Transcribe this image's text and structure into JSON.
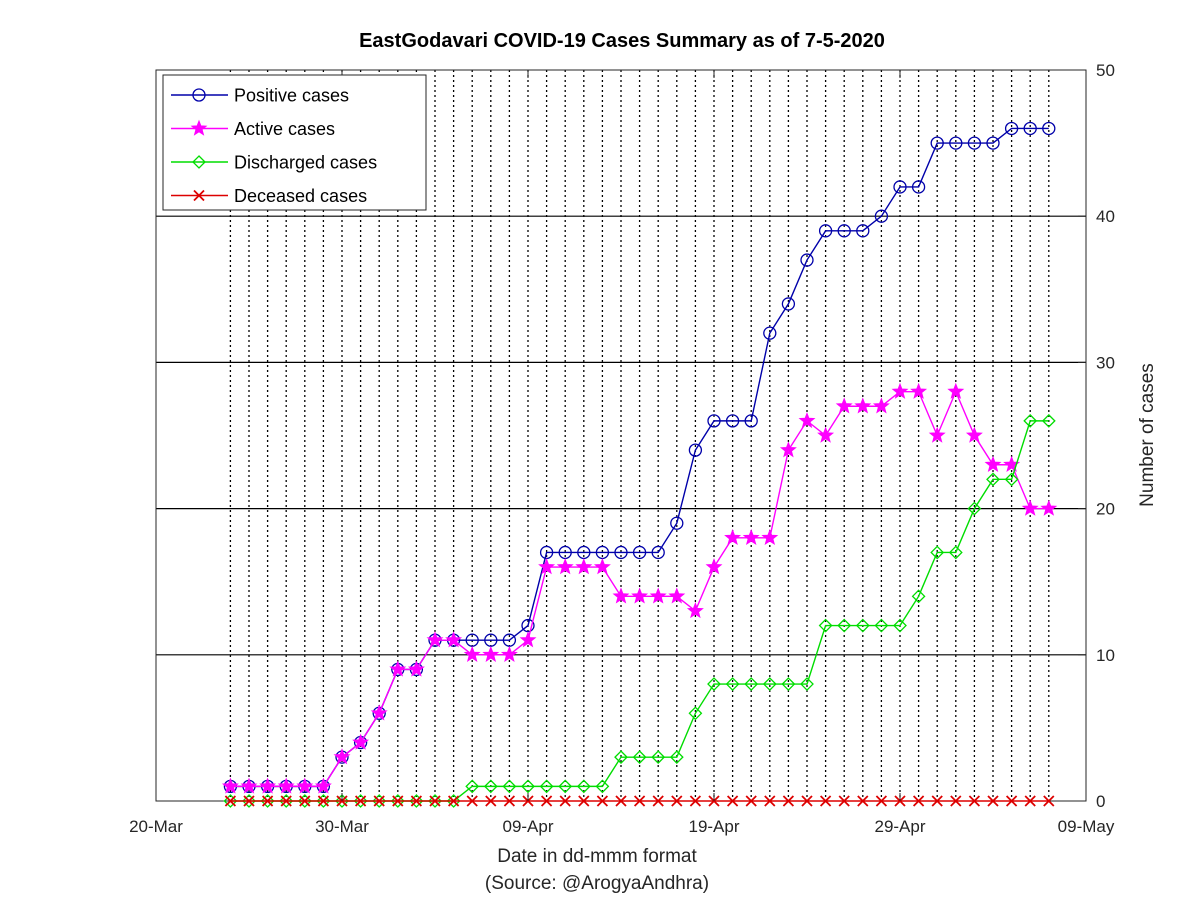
{
  "chart_data": {
    "type": "line",
    "title": "EastGodavari COVID-19 Cases Summary as of 7-5-2020",
    "xlabel": "Date in dd-mmm format",
    "xlabel2": "(Source: @ArogyaAndhra)",
    "ylabel": "Number of cases",
    "x_tick_labels": [
      "20-Mar",
      "30-Mar",
      "09-Apr",
      "19-Apr",
      "29-Apr",
      "09-May"
    ],
    "y_tick_labels": [
      "0",
      "10",
      "20",
      "30",
      "40",
      "50"
    ],
    "x_range": [
      "20-Mar",
      "09-May"
    ],
    "ylim": [
      0,
      50
    ],
    "grid": "on",
    "legend_position": "top-left",
    "dates": [
      "24-Mar",
      "25-Mar",
      "26-Mar",
      "27-Mar",
      "28-Mar",
      "29-Mar",
      "30-Mar",
      "31-Mar",
      "01-Apr",
      "02-Apr",
      "03-Apr",
      "04-Apr",
      "05-Apr",
      "06-Apr",
      "07-Apr",
      "08-Apr",
      "09-Apr",
      "10-Apr",
      "11-Apr",
      "12-Apr",
      "13-Apr",
      "14-Apr",
      "15-Apr",
      "16-Apr",
      "17-Apr",
      "18-Apr",
      "19-Apr",
      "20-Apr",
      "21-Apr",
      "22-Apr",
      "23-Apr",
      "24-Apr",
      "25-Apr",
      "26-Apr",
      "27-Apr",
      "28-Apr",
      "29-Apr",
      "30-Apr",
      "01-May",
      "02-May",
      "03-May",
      "04-May",
      "05-May",
      "06-May",
      "07-May"
    ],
    "series": [
      {
        "name": "Positive cases",
        "color": "#0000aa",
        "marker": "circle",
        "values": [
          1,
          1,
          1,
          1,
          1,
          1,
          3,
          4,
          6,
          9,
          9,
          11,
          11,
          11,
          11,
          11,
          12,
          17,
          17,
          17,
          17,
          17,
          17,
          17,
          19,
          24,
          26,
          26,
          26,
          32,
          34,
          37,
          39,
          39,
          39,
          40,
          42,
          42,
          45,
          45,
          45,
          45,
          46,
          46,
          46
        ]
      },
      {
        "name": "Active cases",
        "color": "#ff00ff",
        "marker": "star",
        "values": [
          1,
          1,
          1,
          1,
          1,
          1,
          3,
          4,
          6,
          9,
          9,
          11,
          11,
          10,
          10,
          10,
          11,
          16,
          16,
          16,
          16,
          14,
          14,
          14,
          14,
          13,
          16,
          18,
          18,
          18,
          24,
          26,
          25,
          27,
          27,
          27,
          28,
          28,
          25,
          28,
          25,
          23,
          23,
          20,
          20
        ]
      },
      {
        "name": "Discharged cases",
        "color": "#00dd00",
        "marker": "diamond",
        "values": [
          0,
          0,
          0,
          0,
          0,
          0,
          0,
          0,
          0,
          0,
          0,
          0,
          0,
          1,
          1,
          1,
          1,
          1,
          1,
          1,
          1,
          3,
          3,
          3,
          3,
          6,
          8,
          8,
          8,
          8,
          8,
          8,
          12,
          12,
          12,
          12,
          12,
          14,
          17,
          17,
          20,
          22,
          22,
          26,
          26
        ]
      },
      {
        "name": "Deceased cases",
        "color": "#dd0000",
        "marker": "x",
        "values": [
          0,
          0,
          0,
          0,
          0,
          0,
          0,
          0,
          0,
          0,
          0,
          0,
          0,
          0,
          0,
          0,
          0,
          0,
          0,
          0,
          0,
          0,
          0,
          0,
          0,
          0,
          0,
          0,
          0,
          0,
          0,
          0,
          0,
          0,
          0,
          0,
          0,
          0,
          0,
          0,
          0,
          0,
          0,
          0,
          0
        ]
      }
    ]
  }
}
